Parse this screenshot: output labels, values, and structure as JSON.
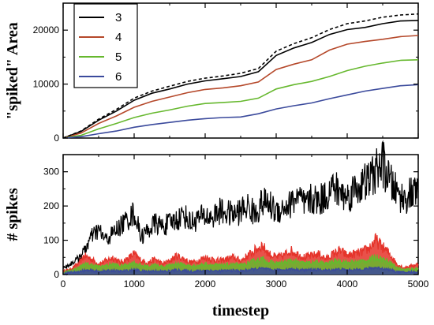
{
  "chart_data": [
    {
      "type": "line",
      "panel": "top",
      "ylabel": "\"spiked\" Area",
      "xlim": [
        0,
        5000
      ],
      "ylim": [
        0,
        25000
      ],
      "x_ticks": [
        0,
        1000,
        2000,
        3000,
        4000,
        5000
      ],
      "y_ticks": [
        0,
        10000,
        20000
      ],
      "y_tick_labels": [
        "0",
        "10000",
        "20000"
      ],
      "legend_position": "top-left",
      "series": [
        {
          "name": "3",
          "color": "#000000",
          "dashed": false,
          "x": [
            0,
            250,
            500,
            750,
            1000,
            1250,
            1500,
            1750,
            2000,
            2250,
            2500,
            2750,
            3000,
            3250,
            3500,
            3750,
            4000,
            4250,
            4500,
            4750,
            5000
          ],
          "values": [
            0,
            1200,
            3300,
            5000,
            7000,
            8300,
            9100,
            10000,
            10600,
            11000,
            11400,
            12300,
            15300,
            16700,
            17700,
            19200,
            20100,
            20500,
            21200,
            21700,
            21800
          ]
        },
        {
          "name": "4",
          "color": "#b5482a",
          "dashed": false,
          "x": [
            0,
            250,
            500,
            750,
            1000,
            1250,
            1500,
            1750,
            2000,
            2250,
            2500,
            2750,
            3000,
            3250,
            3500,
            3750,
            4000,
            4250,
            4500,
            4750,
            5000
          ],
          "values": [
            0,
            900,
            2700,
            4100,
            5700,
            6800,
            7600,
            8400,
            9000,
            9300,
            9700,
            10400,
            12700,
            13700,
            14500,
            16300,
            17400,
            17900,
            18300,
            18800,
            19000
          ]
        },
        {
          "name": "5",
          "color": "#66b82e",
          "dashed": false,
          "x": [
            0,
            250,
            500,
            750,
            1000,
            1250,
            1500,
            1750,
            2000,
            2250,
            2500,
            2750,
            3000,
            3250,
            3500,
            3750,
            4000,
            4250,
            4500,
            4750,
            5000
          ],
          "values": [
            0,
            500,
            1700,
            2700,
            3800,
            4600,
            5200,
            5900,
            6400,
            6600,
            6800,
            7400,
            9100,
            9900,
            10500,
            11400,
            12500,
            13300,
            13900,
            14400,
            14500
          ]
        },
        {
          "name": "6",
          "color": "#3b4a9c",
          "dashed": false,
          "x": [
            0,
            250,
            500,
            750,
            1000,
            1250,
            1500,
            1750,
            2000,
            2250,
            2500,
            2750,
            3000,
            3250,
            3500,
            3750,
            4000,
            4250,
            4500,
            4750,
            5000
          ],
          "values": [
            0,
            250,
            800,
            1300,
            2000,
            2500,
            2900,
            3300,
            3600,
            3800,
            3900,
            4500,
            5400,
            6000,
            6500,
            7300,
            8000,
            8700,
            9200,
            9700,
            9900
          ]
        },
        {
          "name": "",
          "color": "#000000",
          "dashed": true,
          "x": [
            0,
            250,
            500,
            750,
            1000,
            1250,
            1500,
            1750,
            2000,
            2250,
            2500,
            2750,
            3000,
            3250,
            3500,
            3750,
            4000,
            4250,
            4500,
            4750,
            5000
          ],
          "values": [
            0,
            1300,
            3500,
            5300,
            7400,
            8700,
            9600,
            10500,
            11100,
            11500,
            12000,
            12900,
            16100,
            17500,
            18600,
            20100,
            21200,
            21700,
            22400,
            22800,
            23000
          ]
        }
      ]
    },
    {
      "type": "line",
      "panel": "bottom",
      "xlabel": "timestep",
      "ylabel": "# spikes",
      "xlim": [
        0,
        5000
      ],
      "ylim": [
        0,
        350
      ],
      "x_ticks": [
        0,
        1000,
        2000,
        3000,
        4000,
        5000
      ],
      "x_tick_labels": [
        "0",
        "1000",
        "2000",
        "3000",
        "4000",
        "5000"
      ],
      "y_ticks": [
        0,
        100,
        200,
        300
      ],
      "y_tick_labels": [
        "0",
        "100",
        "200",
        "300"
      ],
      "series": [
        {
          "name": "3",
          "color": "#000000",
          "x": [
            0,
            100,
            200,
            300,
            400,
            500,
            600,
            700,
            800,
            900,
            1000,
            1100,
            1200,
            1300,
            1400,
            1500,
            1600,
            1700,
            1800,
            1900,
            2000,
            2100,
            2200,
            2300,
            2400,
            2500,
            2600,
            2700,
            2800,
            2900,
            3000,
            3100,
            3200,
            3300,
            3400,
            3500,
            3600,
            3700,
            3800,
            3900,
            4000,
            4100,
            4200,
            4300,
            4400,
            4500,
            4600,
            4700,
            4800,
            4900,
            5000
          ],
          "values": [
            20,
            30,
            45,
            70,
            110,
            130,
            100,
            120,
            140,
            160,
            180,
            110,
            130,
            150,
            140,
            150,
            160,
            175,
            150,
            165,
            170,
            165,
            185,
            180,
            175,
            185,
            200,
            175,
            210,
            205,
            185,
            195,
            205,
            230,
            200,
            220,
            215,
            230,
            255,
            240,
            225,
            250,
            260,
            275,
            300,
            325,
            270,
            240,
            220,
            235,
            240
          ]
        },
        {
          "name": "4",
          "color": "#e5332a",
          "x": [
            0,
            100,
            200,
            300,
            400,
            500,
            600,
            700,
            800,
            900,
            1000,
            1100,
            1200,
            1300,
            1400,
            1500,
            1600,
            1700,
            1800,
            1900,
            2000,
            2100,
            2200,
            2300,
            2400,
            2500,
            2600,
            2700,
            2800,
            2900,
            3000,
            3100,
            3200,
            3300,
            3400,
            3500,
            3600,
            3700,
            3800,
            3900,
            4000,
            4100,
            4200,
            4300,
            4400,
            4500,
            4600,
            4700,
            4800,
            4900,
            5000
          ],
          "values": [
            10,
            15,
            30,
            55,
            45,
            30,
            40,
            50,
            35,
            45,
            60,
            40,
            35,
            45,
            30,
            40,
            55,
            45,
            35,
            40,
            50,
            45,
            40,
            45,
            50,
            40,
            55,
            70,
            85,
            60,
            50,
            55,
            70,
            60,
            50,
            55,
            60,
            45,
            60,
            70,
            55,
            60,
            65,
            75,
            100,
            80,
            60,
            30,
            20,
            25,
            30
          ]
        },
        {
          "name": "5",
          "color": "#66b82e",
          "x": [
            0,
            100,
            200,
            300,
            400,
            500,
            600,
            700,
            800,
            900,
            1000,
            1100,
            1200,
            1300,
            1400,
            1500,
            1600,
            1700,
            1800,
            1900,
            2000,
            2100,
            2200,
            2300,
            2400,
            2500,
            2600,
            2700,
            2800,
            2900,
            3000,
            3100,
            3200,
            3300,
            3400,
            3500,
            3600,
            3700,
            3800,
            3900,
            4000,
            4100,
            4200,
            4300,
            4400,
            4500,
            4600,
            4700,
            4800,
            4900,
            5000
          ],
          "values": [
            6,
            10,
            18,
            30,
            28,
            22,
            26,
            30,
            24,
            28,
            35,
            26,
            24,
            28,
            22,
            26,
            32,
            28,
            24,
            26,
            30,
            28,
            26,
            28,
            30,
            26,
            32,
            40,
            45,
            36,
            32,
            34,
            40,
            36,
            32,
            34,
            36,
            30,
            36,
            40,
            34,
            36,
            38,
            42,
            50,
            45,
            36,
            20,
            14,
            16,
            18
          ]
        },
        {
          "name": "6",
          "color": "#3b4a9c",
          "x": [
            0,
            100,
            200,
            300,
            400,
            500,
            600,
            700,
            800,
            900,
            1000,
            1100,
            1200,
            1300,
            1400,
            1500,
            1600,
            1700,
            1800,
            1900,
            2000,
            2100,
            2200,
            2300,
            2400,
            2500,
            2600,
            2700,
            2800,
            2900,
            3000,
            3100,
            3200,
            3300,
            3400,
            3500,
            3600,
            3700,
            3800,
            3900,
            4000,
            4100,
            4200,
            4300,
            4400,
            4500,
            4600,
            4700,
            4800,
            4900,
            5000
          ],
          "values": [
            3,
            5,
            8,
            12,
            11,
            9,
            10,
            12,
            9,
            11,
            14,
            10,
            9,
            11,
            9,
            10,
            13,
            11,
            9,
            10,
            12,
            11,
            10,
            11,
            12,
            10,
            13,
            16,
            18,
            14,
            13,
            14,
            16,
            14,
            13,
            14,
            14,
            12,
            14,
            16,
            13,
            14,
            15,
            17,
            20,
            18,
            14,
            8,
            6,
            7,
            8
          ]
        }
      ]
    }
  ]
}
